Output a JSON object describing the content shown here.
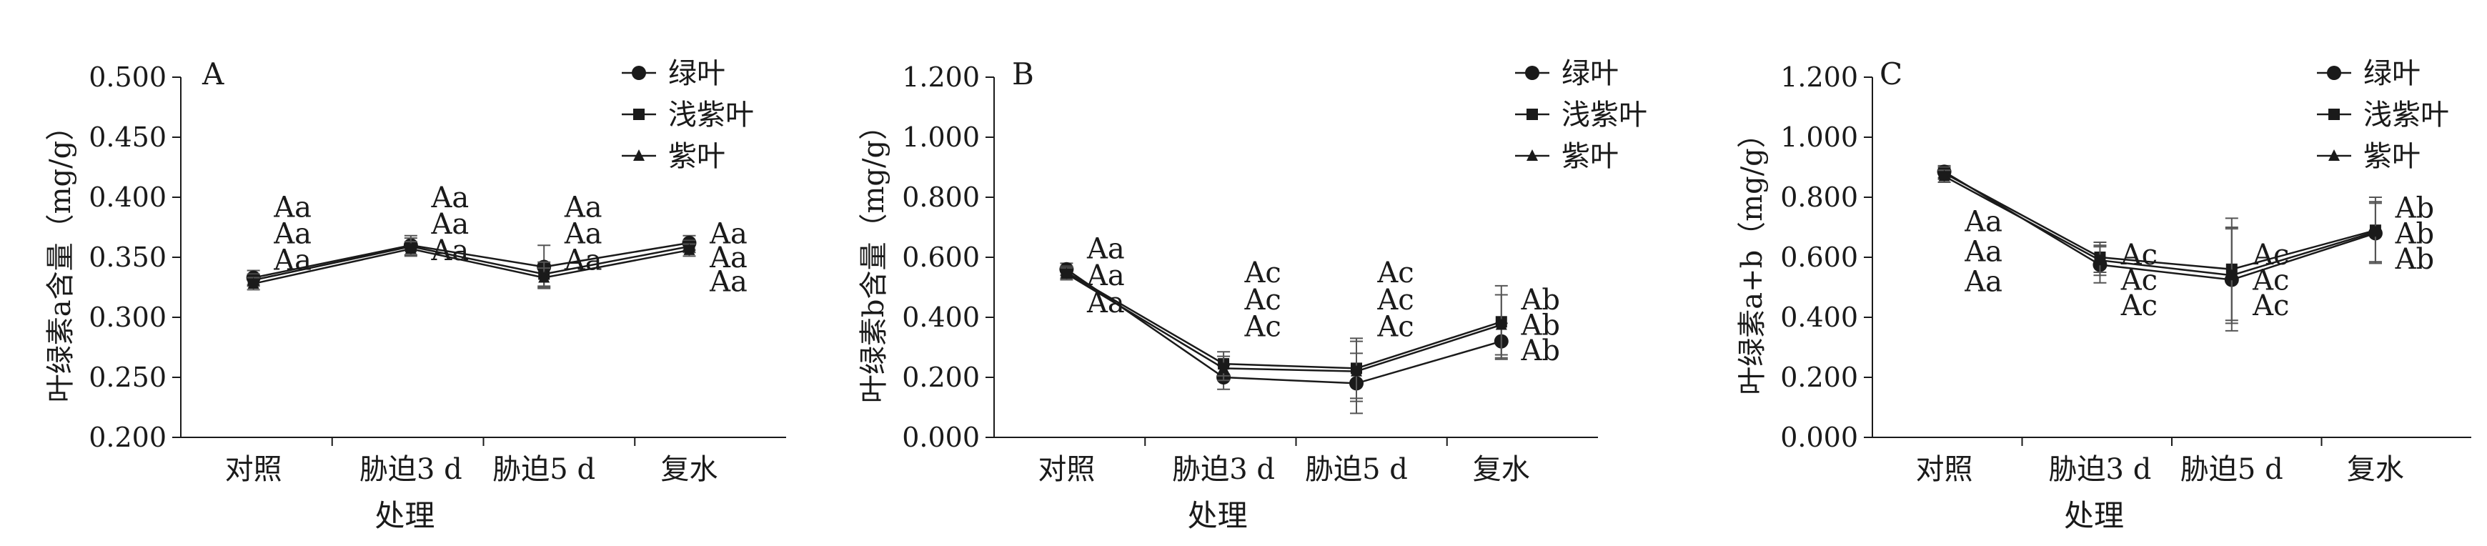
{
  "chart_data": [
    {
      "type": "line",
      "panel": "A",
      "ylabel": "叶绿素a含量（mg/g）",
      "xlabel": "处理",
      "categories": [
        "对照",
        "胁迫3 d",
        "胁迫5 d",
        "复水"
      ],
      "ylim": [
        0.2,
        0.5
      ],
      "yticks": [
        "0.200",
        "0.250",
        "0.300",
        "0.350",
        "0.400",
        "0.450",
        "0.500"
      ],
      "legend": {
        "position": "top-right"
      },
      "series": [
        {
          "name": "绿叶",
          "marker": "circle",
          "values": [
            0.333,
            0.36,
            0.342,
            0.362
          ],
          "err": [
            0.006,
            0.008,
            0.018,
            0.006
          ]
        },
        {
          "name": "浅紫叶",
          "marker": "square",
          "values": [
            0.331,
            0.359,
            0.336,
            0.359
          ],
          "err": [
            0.005,
            0.007,
            0.01,
            0.005
          ]
        },
        {
          "name": "紫叶",
          "marker": "triangle",
          "values": [
            0.328,
            0.357,
            0.333,
            0.356
          ],
          "err": [
            0.005,
            0.006,
            0.008,
            0.005
          ]
        }
      ],
      "annotations": [
        {
          "category": 0,
          "y": 0.392,
          "text": "Aa"
        },
        {
          "category": 0,
          "y": 0.37,
          "text": "Aa"
        },
        {
          "category": 0,
          "y": 0.348,
          "text": "Aa"
        },
        {
          "category": 1,
          "y": 0.4,
          "text": "Aa"
        },
        {
          "category": 1,
          "y": 0.378,
          "text": "Aa"
        },
        {
          "category": 1,
          "y": 0.356,
          "text": "Aa"
        },
        {
          "category": 2,
          "y": 0.392,
          "text": "Aa"
        },
        {
          "category": 2,
          "y": 0.37,
          "text": "Aa"
        },
        {
          "category": 2,
          "y": 0.348,
          "text": "Aa"
        },
        {
          "category": 3,
          "y": 0.37,
          "text": "Aa"
        },
        {
          "category": 3,
          "y": 0.35,
          "text": "Aa"
        },
        {
          "category": 3,
          "y": 0.33,
          "text": "Aa"
        }
      ]
    },
    {
      "type": "line",
      "panel": "B",
      "ylabel": "叶绿素b含量（mg/g）",
      "xlabel": "处理",
      "categories": [
        "对照",
        "胁迫3 d",
        "胁迫5 d",
        "复水"
      ],
      "ylim": [
        0,
        1.2
      ],
      "yticks": [
        "0.000",
        "0.200",
        "0.400",
        "0.600",
        "0.800",
        "1.000",
        "1.200"
      ],
      "legend": {
        "position": "top-right"
      },
      "series": [
        {
          "name": "绿叶",
          "marker": "circle",
          "values": [
            0.56,
            0.2,
            0.18,
            0.32
          ],
          "err": [
            0.02,
            0.04,
            0.1,
            0.06
          ]
        },
        {
          "name": "浅紫叶",
          "marker": "square",
          "values": [
            0.55,
            0.245,
            0.23,
            0.385
          ],
          "err": [
            0.02,
            0.04,
            0.1,
            0.12
          ]
        },
        {
          "name": "紫叶",
          "marker": "triangle",
          "values": [
            0.545,
            0.23,
            0.22,
            0.375
          ],
          "err": [
            0.02,
            0.04,
            0.1,
            0.1
          ]
        }
      ],
      "annotations": [
        {
          "category": 0,
          "y": 0.63,
          "text": "Aa"
        },
        {
          "category": 0,
          "y": 0.54,
          "text": "Aa"
        },
        {
          "category": 0,
          "y": 0.45,
          "text": "Aa"
        },
        {
          "category": 1,
          "y": 0.55,
          "text": "Ac"
        },
        {
          "category": 1,
          "y": 0.46,
          "text": "Ac"
        },
        {
          "category": 1,
          "y": 0.37,
          "text": "Ac"
        },
        {
          "category": 2,
          "y": 0.55,
          "text": "Ac"
        },
        {
          "category": 2,
          "y": 0.46,
          "text": "Ac"
        },
        {
          "category": 2,
          "y": 0.37,
          "text": "Ac"
        },
        {
          "category": 3,
          "y": 0.46,
          "text": "Ab"
        },
        {
          "category": 3,
          "y": 0.375,
          "text": "Ab"
        },
        {
          "category": 3,
          "y": 0.29,
          "text": "Ab"
        }
      ]
    },
    {
      "type": "line",
      "panel": "C",
      "ylabel": "叶绿素a+b（mg/g）",
      "xlabel": "处理",
      "categories": [
        "对照",
        "胁迫3 d",
        "胁迫5 d",
        "复水"
      ],
      "ylim": [
        0,
        1.2
      ],
      "yticks": [
        "0.000",
        "0.200",
        "0.400",
        "0.600",
        "0.800",
        "1.000",
        "1.200"
      ],
      "legend": {
        "position": "top-right"
      },
      "series": [
        {
          "name": "绿叶",
          "marker": "circle",
          "values": [
            0.885,
            0.575,
            0.525,
            0.68
          ],
          "err": [
            0.02,
            0.06,
            0.17,
            0.1
          ]
        },
        {
          "name": "浅紫叶",
          "marker": "square",
          "values": [
            0.88,
            0.6,
            0.56,
            0.69
          ],
          "err": [
            0.02,
            0.05,
            0.17,
            0.11
          ]
        },
        {
          "name": "紫叶",
          "marker": "triangle",
          "values": [
            0.87,
            0.59,
            0.54,
            0.685
          ],
          "err": [
            0.02,
            0.05,
            0.16,
            0.1
          ]
        }
      ],
      "annotations": [
        {
          "category": 0,
          "y": 0.72,
          "text": "Aa"
        },
        {
          "category": 0,
          "y": 0.62,
          "text": "Aa"
        },
        {
          "category": 0,
          "y": 0.52,
          "text": "Aa"
        },
        {
          "category": 1,
          "y": 0.61,
          "text": "Ac"
        },
        {
          "category": 1,
          "y": 0.525,
          "text": "Ac"
        },
        {
          "category": 1,
          "y": 0.44,
          "text": "Ac"
        },
        {
          "category": 2,
          "y": 0.61,
          "text": "Ac"
        },
        {
          "category": 2,
          "y": 0.525,
          "text": "Ac"
        },
        {
          "category": 2,
          "y": 0.44,
          "text": "Ac"
        },
        {
          "category": 3,
          "y": 0.765,
          "text": "Ab"
        },
        {
          "category": 3,
          "y": 0.68,
          "text": "Ab"
        },
        {
          "category": 3,
          "y": 0.595,
          "text": "Ab"
        }
      ]
    }
  ]
}
